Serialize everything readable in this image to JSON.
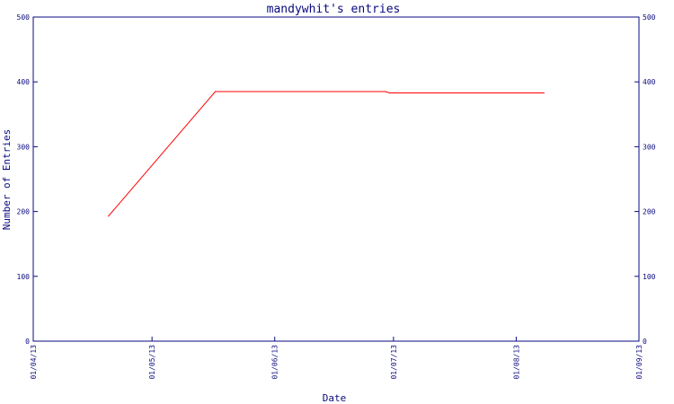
{
  "chart_data": {
    "type": "line",
    "title": "mandywhit's entries",
    "xlabel": "Date",
    "ylabel": "Number of Entries",
    "x_tick_labels": [
      "01/04/13",
      "01/05/13",
      "01/06/13",
      "01/07/13",
      "01/08/13",
      "01/09/13"
    ],
    "y_tick_labels": [
      "0",
      "100",
      "200",
      "300",
      "400",
      "500"
    ],
    "xlim": [
      "2013-04-01",
      "2013-09-01"
    ],
    "ylim": [
      0,
      500
    ],
    "grid": false,
    "series": [
      {
        "color": "#ff0000",
        "points": [
          {
            "x": "2013-04-20",
            "y": 193
          },
          {
            "x": "2013-05-17",
            "y": 385
          },
          {
            "x": "2013-06-29",
            "y": 385
          },
          {
            "x": "2013-06-30",
            "y": 383
          },
          {
            "x": "2013-08-08",
            "y": 383
          }
        ]
      }
    ]
  },
  "colors": {
    "axis": "#0a0a80",
    "background": "#ffffff"
  }
}
